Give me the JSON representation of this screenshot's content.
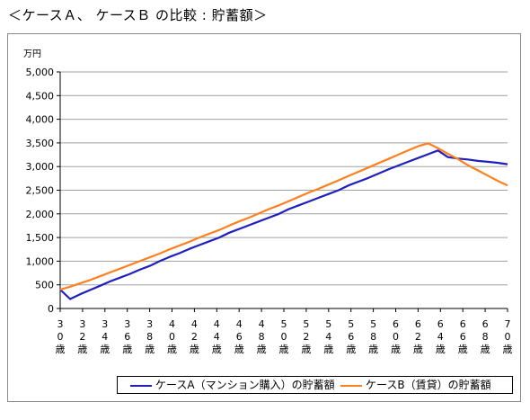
{
  "title": "＜ケースＡ、 ケースＢ の比較 : 貯蓄額＞",
  "chart_data": {
    "type": "line",
    "ylabel": "万円",
    "ylim": [
      0,
      5000
    ],
    "yticks": [
      "5,000",
      "4,500",
      "4,000",
      "3,500",
      "3,000",
      "2,500",
      "2,000",
      "1,500",
      "1,000",
      "500",
      "0"
    ],
    "x": [
      30,
      32,
      34,
      36,
      38,
      40,
      42,
      44,
      46,
      48,
      50,
      52,
      54,
      56,
      58,
      60,
      62,
      64,
      66,
      68,
      70
    ],
    "xticks": [
      [
        "3",
        "0",
        "歳"
      ],
      [
        "3",
        "2",
        "歳"
      ],
      [
        "3",
        "4",
        "歳"
      ],
      [
        "3",
        "6",
        "歳"
      ],
      [
        "3",
        "8",
        "歳"
      ],
      [
        "4",
        "0",
        "歳"
      ],
      [
        "4",
        "2",
        "歳"
      ],
      [
        "4",
        "4",
        "歳"
      ],
      [
        "4",
        "6",
        "歳"
      ],
      [
        "4",
        "8",
        "歳"
      ],
      [
        "5",
        "0",
        "歳"
      ],
      [
        "5",
        "2",
        "歳"
      ],
      [
        "5",
        "4",
        "歳"
      ],
      [
        "5",
        "6",
        "歳"
      ],
      [
        "5",
        "8",
        "歳"
      ],
      [
        "6",
        "0",
        "歳"
      ],
      [
        "6",
        "2",
        "歳"
      ],
      [
        "6",
        "4",
        "歳"
      ],
      [
        "6",
        "6",
        "歳"
      ],
      [
        "6",
        "8",
        "歳"
      ],
      [
        "7",
        "0",
        "歳"
      ]
    ],
    "grid": "horizontal",
    "legend_position": "bottom",
    "series": [
      {
        "name": "ケースA（マンション購入）の貯蓄額",
        "color": "#1f1fbf",
        "points": [
          [
            30,
            400
          ],
          [
            31,
            200
          ],
          [
            32,
            300
          ],
          [
            33,
            390
          ],
          [
            34,
            480
          ],
          [
            35,
            570
          ],
          [
            36,
            650
          ],
          [
            37,
            730
          ],
          [
            38,
            820
          ],
          [
            39,
            900
          ],
          [
            40,
            1000
          ],
          [
            41,
            1090
          ],
          [
            42,
            1170
          ],
          [
            43,
            1260
          ],
          [
            44,
            1340
          ],
          [
            45,
            1420
          ],
          [
            46,
            1500
          ],
          [
            47,
            1600
          ],
          [
            48,
            1680
          ],
          [
            49,
            1760
          ],
          [
            50,
            1840
          ],
          [
            51,
            1920
          ],
          [
            52,
            2000
          ],
          [
            53,
            2100
          ],
          [
            54,
            2180
          ],
          [
            55,
            2260
          ],
          [
            56,
            2340
          ],
          [
            57,
            2420
          ],
          [
            58,
            2500
          ],
          [
            59,
            2600
          ],
          [
            60,
            2680
          ],
          [
            61,
            2760
          ],
          [
            62,
            2850
          ],
          [
            63,
            2940
          ],
          [
            64,
            3020
          ],
          [
            65,
            3100
          ],
          [
            66,
            3180
          ],
          [
            67,
            3260
          ],
          [
            68,
            3340
          ],
          [
            69,
            3200
          ],
          [
            70,
            3170
          ],
          [
            71,
            3150
          ],
          [
            72,
            3120
          ],
          [
            73,
            3100
          ],
          [
            74,
            3080
          ],
          [
            75,
            3050
          ]
        ]
      },
      {
        "name": "ケースB（賃貸）の貯蓄額",
        "color": "#ff7f1e",
        "points": [
          [
            30,
            400
          ],
          [
            31,
            460
          ],
          [
            32,
            530
          ],
          [
            33,
            600
          ],
          [
            34,
            680
          ],
          [
            35,
            760
          ],
          [
            36,
            840
          ],
          [
            37,
            920
          ],
          [
            38,
            1000
          ],
          [
            39,
            1080
          ],
          [
            40,
            1160
          ],
          [
            41,
            1250
          ],
          [
            42,
            1330
          ],
          [
            43,
            1410
          ],
          [
            44,
            1500
          ],
          [
            45,
            1580
          ],
          [
            46,
            1660
          ],
          [
            47,
            1750
          ],
          [
            48,
            1840
          ],
          [
            49,
            1920
          ],
          [
            50,
            2010
          ],
          [
            51,
            2100
          ],
          [
            52,
            2180
          ],
          [
            53,
            2270
          ],
          [
            54,
            2360
          ],
          [
            55,
            2450
          ],
          [
            56,
            2530
          ],
          [
            57,
            2620
          ],
          [
            58,
            2710
          ],
          [
            59,
            2800
          ],
          [
            60,
            2890
          ],
          [
            61,
            2980
          ],
          [
            62,
            3070
          ],
          [
            63,
            3160
          ],
          [
            64,
            3250
          ],
          [
            65,
            3340
          ],
          [
            66,
            3430
          ],
          [
            67,
            3490
          ],
          [
            68,
            3390
          ],
          [
            69,
            3270
          ],
          [
            70,
            3160
          ],
          [
            71,
            3030
          ],
          [
            72,
            2920
          ],
          [
            73,
            2810
          ],
          [
            74,
            2700
          ],
          [
            75,
            2600
          ]
        ]
      }
    ]
  }
}
